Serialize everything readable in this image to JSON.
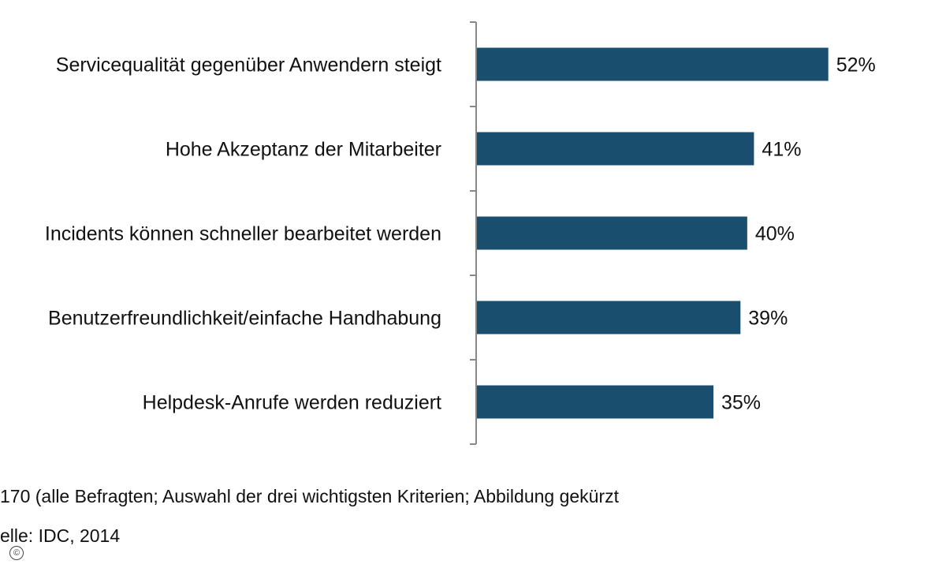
{
  "chart_data": {
    "type": "bar",
    "orientation": "horizontal",
    "categories": [
      "Servicequalität gegenüber Anwendern steigt",
      "Hohe Akzeptanz der Mitarbeiter",
      "Incidents können schneller bearbeitet werden",
      "Benutzerfreundlichkeit/einfache Handhabung",
      "Helpdesk-Anrufe werden reduziert"
    ],
    "values": [
      52,
      41,
      40,
      39,
      35
    ],
    "value_labels": [
      "52%",
      "41%",
      "40%",
      "39%",
      "35%"
    ],
    "unit": "%",
    "xlim": [
      0,
      70
    ],
    "grid": false,
    "legend": "none",
    "bar_color": "#1a4e6e",
    "axis_color": "#888888"
  },
  "footnotes": {
    "sample": "170 (alle Befragten; Auswahl der drei wichtigsten Kriterien; Abbildung gekürzt",
    "source": "elle: IDC, 2014"
  },
  "icons": {
    "copyright": "©"
  }
}
